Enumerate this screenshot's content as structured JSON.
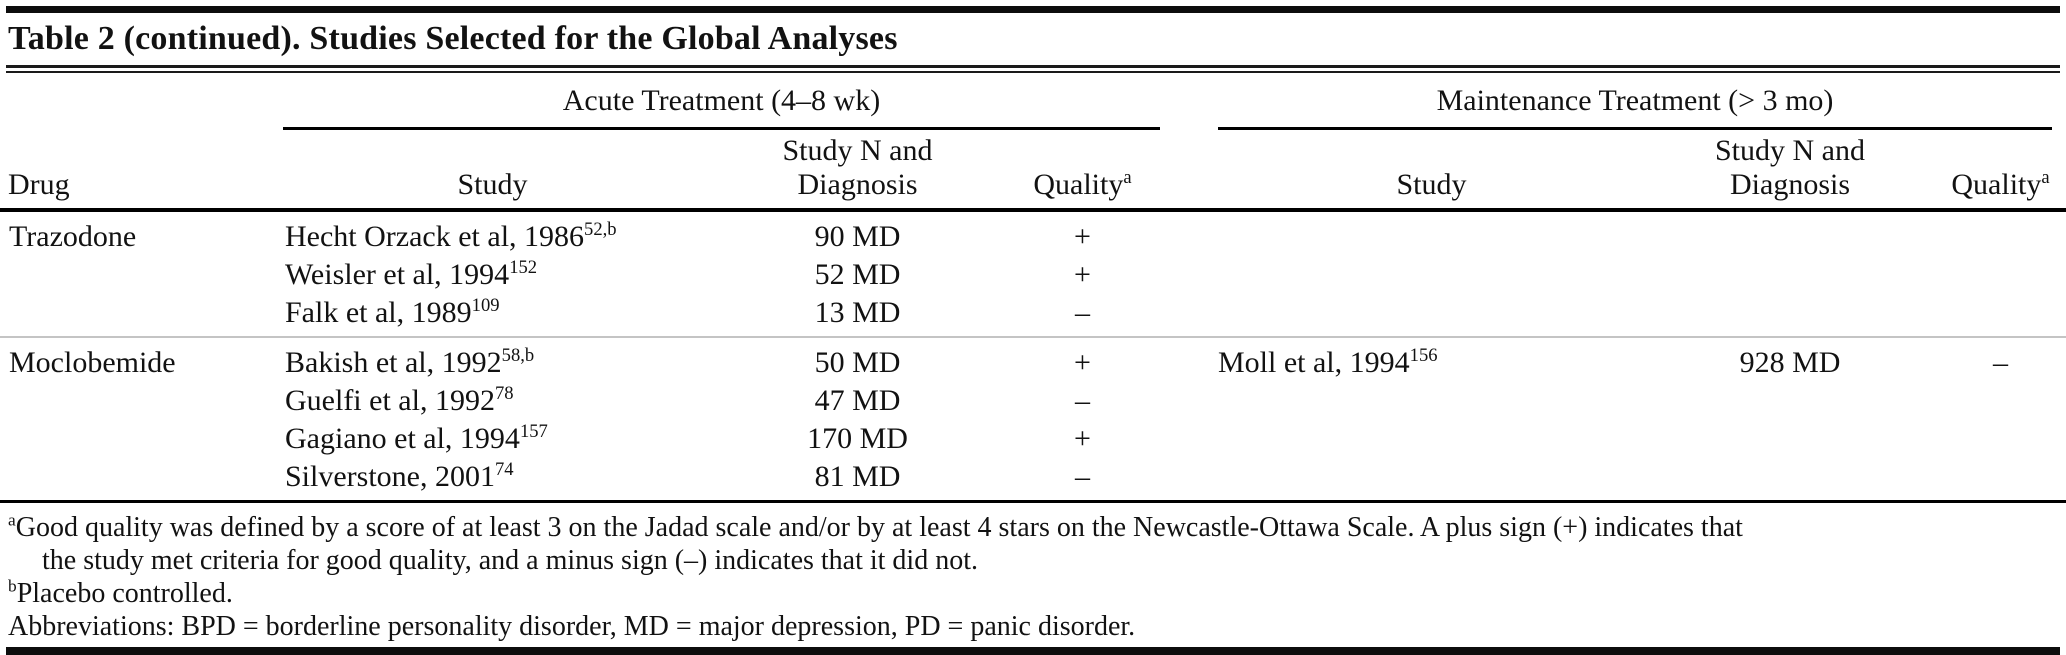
{
  "title": "Table 2 (continued). Studies Selected for the Global Analyses",
  "groups": {
    "acute": "Acute Treatment (4–8 wk)",
    "maintenance": "Maintenance Treatment (> 3 mo)"
  },
  "columns": {
    "drug": "Drug",
    "study": "Study",
    "n_line1": "Study N and",
    "n_line2": "Diagnosis",
    "quality": "Quality",
    "quality_sup": "a"
  },
  "rows": [
    {
      "drug": "Trazodone",
      "acute": [
        {
          "study": "Hecht Orzack et al, 1986",
          "ref": "52,b",
          "n": "90 MD",
          "quality": "+"
        },
        {
          "study": "Weisler et al, 1994",
          "ref": "152",
          "n": "52 MD",
          "quality": "+"
        },
        {
          "study": "Falk et al, 1989",
          "ref": "109",
          "n": "13 MD",
          "quality": "–"
        }
      ],
      "maintenance": []
    },
    {
      "drug": "Moclobemide",
      "acute": [
        {
          "study": "Bakish et al, 1992",
          "ref": "58,b",
          "n": "50 MD",
          "quality": "+"
        },
        {
          "study": "Guelfi et al, 1992",
          "ref": "78",
          "n": "47 MD",
          "quality": "–"
        },
        {
          "study": "Gagiano et al, 1994",
          "ref": "157",
          "n": "170 MD",
          "quality": "+"
        },
        {
          "study": "Silverstone, 2001",
          "ref": "74",
          "n": "81 MD",
          "quality": "–"
        }
      ],
      "maintenance": [
        {
          "study": "Moll et al, 1994",
          "ref": "156",
          "n": "928 MD",
          "quality": "–"
        }
      ]
    }
  ],
  "footnotes": {
    "a_marker": "a",
    "a_line1": "Good quality was defined by a score of at least 3 on the Jadad scale and/or by at least 4 stars on the Newcastle-Ottawa Scale. A plus sign (+) indicates that",
    "a_line2": "the study met criteria for good quality, and a minus sign (–) indicates that it did not.",
    "b_marker": "b",
    "b_text": "Placebo controlled.",
    "abbreviations": "Abbreviations: BPD = borderline personality disorder, MD = major depression, PD = panic disorder."
  }
}
